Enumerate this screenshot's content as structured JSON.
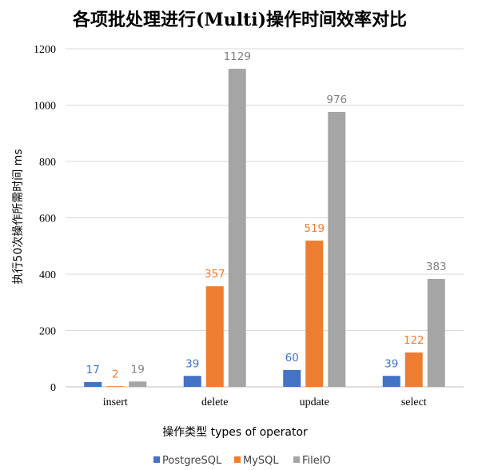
{
  "chart_data": {
    "type": "bar",
    "title": "各项批处理进行(Multi)操作时间效率对比",
    "xlabel": "操作类型 types of operator",
    "ylabel": "执行50次操作所需时间 ms",
    "categories": [
      "insert",
      "delete",
      "update",
      "select"
    ],
    "series": [
      {
        "name": "PostgreSQL",
        "color": "#4472c4",
        "values": [
          17,
          39,
          60,
          39
        ]
      },
      {
        "name": "MySQL",
        "color": "#ed7d31",
        "values": [
          2,
          357,
          519,
          122
        ]
      },
      {
        "name": "FileIO",
        "color": "#a5a5a5",
        "values": [
          19,
          1129,
          976,
          383
        ]
      }
    ],
    "ylim": [
      0,
      1200
    ],
    "yticks": [
      0,
      200,
      400,
      600,
      800,
      1000,
      1200
    ],
    "grid": true,
    "legend_position": "bottom-right",
    "data_labels": true
  }
}
